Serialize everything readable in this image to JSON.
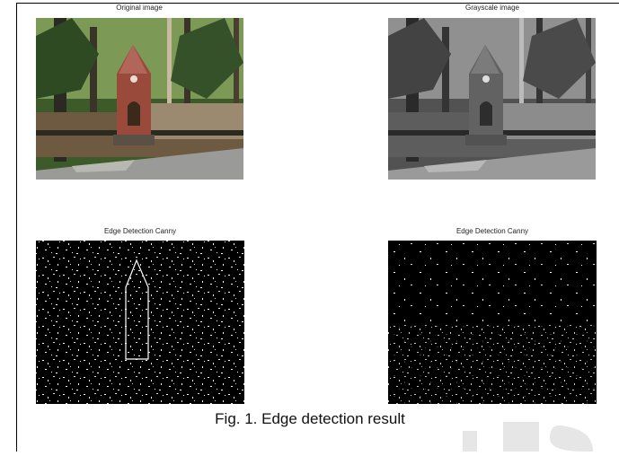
{
  "figure": {
    "panels": [
      {
        "title": "Original image"
      },
      {
        "title": "Grayscale image"
      },
      {
        "title": "Edge Detection Canny"
      },
      {
        "title": "Edge Detection Canny"
      }
    ],
    "caption": "Fig. 1. Edge detection result"
  }
}
